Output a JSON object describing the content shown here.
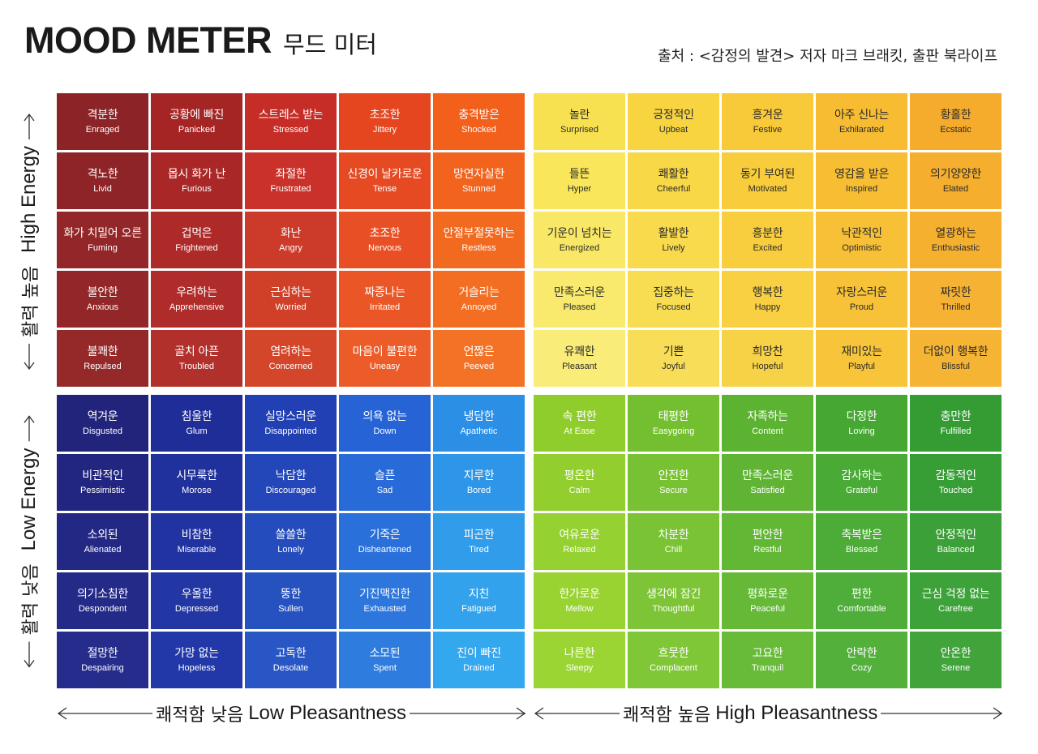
{
  "title": {
    "english": "MOOD METER",
    "korean": "무드 미터"
  },
  "source": "출처 : <감정의 발견> 저자 마크 브래킷, 출판 북라이프",
  "axes": {
    "left_top_ko": "활력 높음",
    "left_top_en": "High Energy",
    "left_bottom_ko": "활력 낮음",
    "left_bottom_en": "Low Energy",
    "bottom_left_ko": "쾌적함 낮음",
    "bottom_left_en": "Low Pleasantness",
    "bottom_right_ko": "쾌적함 높음",
    "bottom_right_en": "High Pleasantness"
  },
  "quadrants": {
    "high_energy_low_pleasantness": {
      "colors": [
        [
          "#8b2327",
          "#a52525",
          "#c62d26",
          "#e5461f",
          "#f2601c"
        ],
        [
          "#8f2428",
          "#a92726",
          "#c9312a",
          "#e54a22",
          "#f2641e"
        ],
        [
          "#922628",
          "#ad2a28",
          "#cc3a2a",
          "#e84f24",
          "#f26a20"
        ],
        [
          "#932628",
          "#b02c2a",
          "#d04028",
          "#ea5626",
          "#f36e22"
        ],
        [
          "#952828",
          "#b2302c",
          "#d3462a",
          "#ec5c28",
          "#f47226"
        ]
      ],
      "rows": [
        [
          {
            "ko": "격분한",
            "en": "Enraged"
          },
          {
            "ko": "공황에 빠진",
            "en": "Panicked"
          },
          {
            "ko": "스트레스 받는",
            "en": "Stressed"
          },
          {
            "ko": "초조한",
            "en": "Jittery"
          },
          {
            "ko": "충격받은",
            "en": "Shocked"
          }
        ],
        [
          {
            "ko": "격노한",
            "en": "Livid"
          },
          {
            "ko": "몹시 화가 난",
            "en": "Furious"
          },
          {
            "ko": "좌절한",
            "en": "Frustrated"
          },
          {
            "ko": "신경이 날카로운",
            "en": "Tense"
          },
          {
            "ko": "망연자실한",
            "en": "Stunned"
          }
        ],
        [
          {
            "ko": "화가 치밀어 오른",
            "en": "Fuming"
          },
          {
            "ko": "겁먹은",
            "en": "Frightened"
          },
          {
            "ko": "화난",
            "en": "Angry"
          },
          {
            "ko": "초조한",
            "en": "Nervous"
          },
          {
            "ko": "안절부절못하는",
            "en": "Restless"
          }
        ],
        [
          {
            "ko": "불안한",
            "en": "Anxious"
          },
          {
            "ko": "우려하는",
            "en": "Apprehensive"
          },
          {
            "ko": "근심하는",
            "en": "Worried"
          },
          {
            "ko": "짜증나는",
            "en": "Irritated"
          },
          {
            "ko": "거슬리는",
            "en": "Annoyed"
          }
        ],
        [
          {
            "ko": "불쾌한",
            "en": "Repulsed"
          },
          {
            "ko": "골치 아픈",
            "en": "Troubled"
          },
          {
            "ko": "염려하는",
            "en": "Concerned"
          },
          {
            "ko": "마음이 불편한",
            "en": "Uneasy"
          },
          {
            "ko": "언짢은",
            "en": "Peeved"
          }
        ]
      ]
    },
    "high_energy_high_pleasantness": {
      "colors": [
        [
          "#f8e150",
          "#f8d540",
          "#f8c938",
          "#f7bc32",
          "#f5ab2c"
        ],
        [
          "#f9e65a",
          "#f8d846",
          "#f8cc3a",
          "#f7be34",
          "#f5ae2e"
        ],
        [
          "#f9e865",
          "#f8da4c",
          "#f8ce3e",
          "#f7c036",
          "#f6b030"
        ],
        [
          "#f9ea6e",
          "#f8dc52",
          "#f8d042",
          "#f7c238",
          "#f6b232"
        ],
        [
          "#faec78",
          "#f8de58",
          "#f8d246",
          "#f7c43a",
          "#f6b434"
        ]
      ],
      "rows": [
        [
          {
            "ko": "놀란",
            "en": "Surprised"
          },
          {
            "ko": "긍정적인",
            "en": "Upbeat"
          },
          {
            "ko": "흥겨운",
            "en": "Festive"
          },
          {
            "ko": "아주 신나는",
            "en": "Exhilarated"
          },
          {
            "ko": "황홀한",
            "en": "Ecstatic"
          }
        ],
        [
          {
            "ko": "들뜬",
            "en": "Hyper"
          },
          {
            "ko": "쾌활한",
            "en": "Cheerful"
          },
          {
            "ko": "동기 부여된",
            "en": "Motivated"
          },
          {
            "ko": "영감을 받은",
            "en": "Inspired"
          },
          {
            "ko": "의기양양한",
            "en": "Elated"
          }
        ],
        [
          {
            "ko": "기운이 넘치는",
            "en": "Energized"
          },
          {
            "ko": "활발한",
            "en": "Lively"
          },
          {
            "ko": "흥분한",
            "en": "Excited"
          },
          {
            "ko": "낙관적인",
            "en": "Optimistic"
          },
          {
            "ko": "열광하는",
            "en": "Enthusiastic"
          }
        ],
        [
          {
            "ko": "만족스러운",
            "en": "Pleased"
          },
          {
            "ko": "집중하는",
            "en": "Focused"
          },
          {
            "ko": "행복한",
            "en": "Happy"
          },
          {
            "ko": "자랑스러운",
            "en": "Proud"
          },
          {
            "ko": "짜릿한",
            "en": "Thrilled"
          }
        ],
        [
          {
            "ko": "유쾌한",
            "en": "Pleasant"
          },
          {
            "ko": "기쁜",
            "en": "Joyful"
          },
          {
            "ko": "희망찬",
            "en": "Hopeful"
          },
          {
            "ko": "재미있는",
            "en": "Playful"
          },
          {
            "ko": "더없이 행복한",
            "en": "Blissful"
          }
        ]
      ]
    },
    "low_energy_low_pleasantness": {
      "colors": [
        [
          "#22237a",
          "#1f2d98",
          "#2140b4",
          "#2664d6",
          "#2c8fe6"
        ],
        [
          "#222680",
          "#20309c",
          "#2346b8",
          "#286ad8",
          "#2e96e8"
        ],
        [
          "#232884",
          "#2133a0",
          "#244cbc",
          "#2a70da",
          "#309cea"
        ],
        [
          "#242a88",
          "#2236a4",
          "#2652c0",
          "#2c76dc",
          "#32a2ec"
        ],
        [
          "#252c8c",
          "#2338a8",
          "#2856c4",
          "#2e7cde",
          "#34a8ee"
        ]
      ],
      "rows": [
        [
          {
            "ko": "역겨운",
            "en": "Disgusted"
          },
          {
            "ko": "침울한",
            "en": "Glum"
          },
          {
            "ko": "실망스러운",
            "en": "Disappointed"
          },
          {
            "ko": "의욕 없는",
            "en": "Down"
          },
          {
            "ko": "냉담한",
            "en": "Apathetic"
          }
        ],
        [
          {
            "ko": "비관적인",
            "en": "Pessimistic"
          },
          {
            "ko": "시무룩한",
            "en": "Morose"
          },
          {
            "ko": "낙담한",
            "en": "Discouraged"
          },
          {
            "ko": "슬픈",
            "en": "Sad"
          },
          {
            "ko": "지루한",
            "en": "Bored"
          }
        ],
        [
          {
            "ko": "소외된",
            "en": "Alienated"
          },
          {
            "ko": "비참한",
            "en": "Miserable"
          },
          {
            "ko": "쓸쓸한",
            "en": "Lonely"
          },
          {
            "ko": "기죽은",
            "en": "Disheartened"
          },
          {
            "ko": "피곤한",
            "en": "Tired"
          }
        ],
        [
          {
            "ko": "의기소침한",
            "en": "Despondent"
          },
          {
            "ko": "우울한",
            "en": "Depressed"
          },
          {
            "ko": "뚱한",
            "en": "Sullen"
          },
          {
            "ko": "기진맥진한",
            "en": "Exhausted"
          },
          {
            "ko": "지친",
            "en": "Fatigued"
          }
        ],
        [
          {
            "ko": "절망한",
            "en": "Despairing"
          },
          {
            "ko": "가망 없는",
            "en": "Hopeless"
          },
          {
            "ko": "고독한",
            "en": "Desolate"
          },
          {
            "ko": "소모된",
            "en": "Spent"
          },
          {
            "ko": "진이 빠진",
            "en": "Drained"
          }
        ]
      ]
    },
    "low_energy_high_pleasantness": {
      "colors": [
        [
          "#8fcd2c",
          "#74bf30",
          "#5cb331",
          "#46a833",
          "#349c33"
        ],
        [
          "#92cf2e",
          "#77c132",
          "#5fb533",
          "#49aa35",
          "#379e35"
        ],
        [
          "#95d130",
          "#7ac334",
          "#62b735",
          "#4cac37",
          "#3aa037"
        ],
        [
          "#98d332",
          "#7dc536",
          "#65b937",
          "#4fae39",
          "#3da239"
        ],
        [
          "#9bd534",
          "#80c738",
          "#68bb39",
          "#52b03b",
          "#40a43b"
        ]
      ],
      "rows": [
        [
          {
            "ko": "속 편한",
            "en": "At Ease"
          },
          {
            "ko": "태평한",
            "en": "Easygoing"
          },
          {
            "ko": "자족하는",
            "en": "Content"
          },
          {
            "ko": "다정한",
            "en": "Loving"
          },
          {
            "ko": "충만한",
            "en": "Fulfilled"
          }
        ],
        [
          {
            "ko": "평온한",
            "en": "Calm"
          },
          {
            "ko": "안전한",
            "en": "Secure"
          },
          {
            "ko": "만족스러운",
            "en": "Satisfied"
          },
          {
            "ko": "감사하는",
            "en": "Grateful"
          },
          {
            "ko": "감동적인",
            "en": "Touched"
          }
        ],
        [
          {
            "ko": "여유로운",
            "en": "Relaxed"
          },
          {
            "ko": "차분한",
            "en": "Chill"
          },
          {
            "ko": "편안한",
            "en": "Restful"
          },
          {
            "ko": "축복받은",
            "en": "Blessed"
          },
          {
            "ko": "안정적인",
            "en": "Balanced"
          }
        ],
        [
          {
            "ko": "한가로운",
            "en": "Mellow"
          },
          {
            "ko": "생각에 잠긴",
            "en": "Thoughtful"
          },
          {
            "ko": "평화로운",
            "en": "Peaceful"
          },
          {
            "ko": "편한",
            "en": "Comfortable"
          },
          {
            "ko": "근심 걱정 없는",
            "en": "Carefree"
          }
        ],
        [
          {
            "ko": "나른한",
            "en": "Sleepy"
          },
          {
            "ko": "흐뭇한",
            "en": "Complacent"
          },
          {
            "ko": "고요한",
            "en": "Tranquil"
          },
          {
            "ko": "안락한",
            "en": "Cozy"
          },
          {
            "ko": "안온한",
            "en": "Serene"
          }
        ]
      ]
    }
  }
}
